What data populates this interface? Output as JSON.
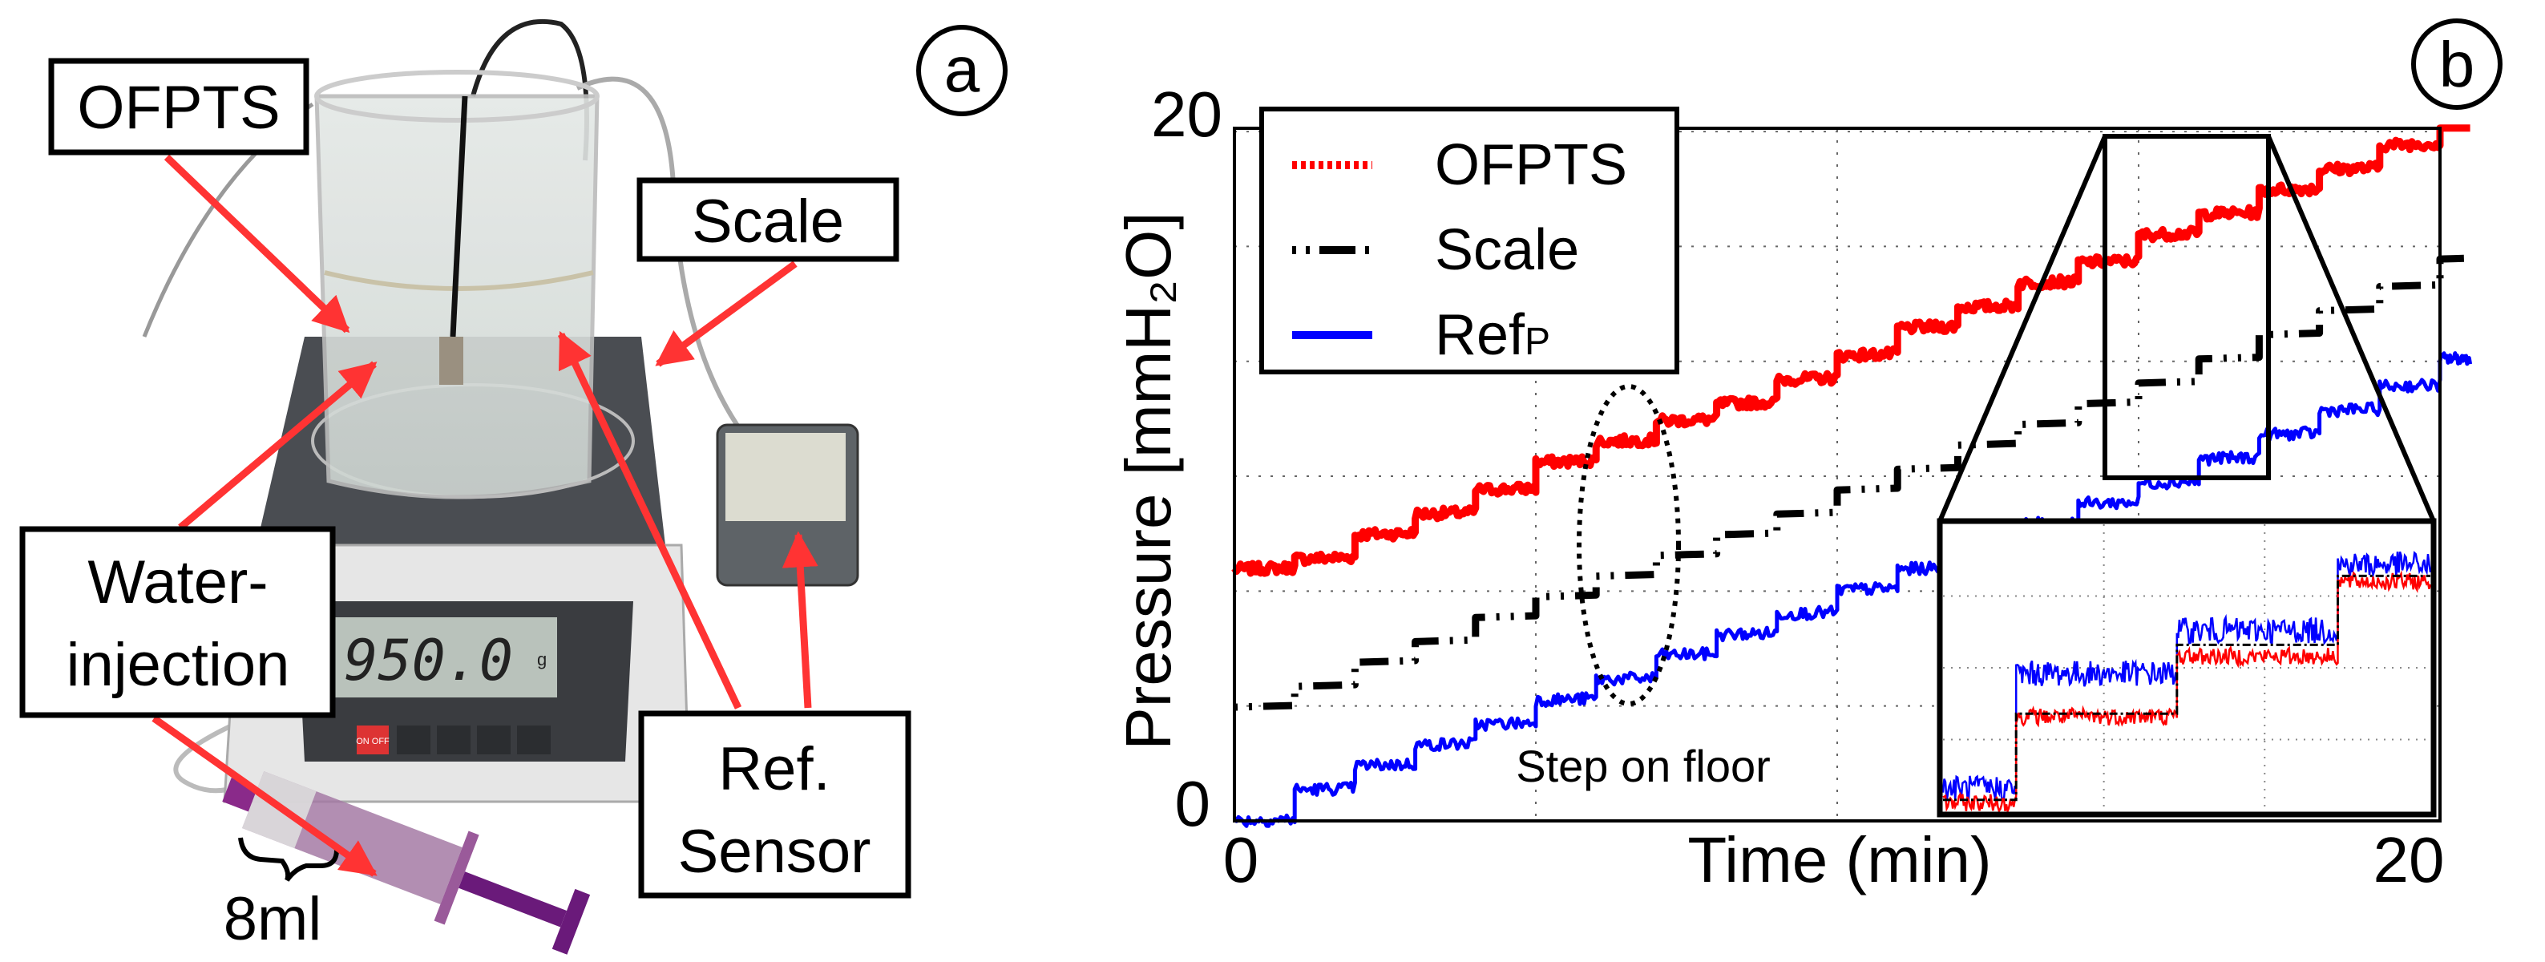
{
  "panel_a": {
    "panel_label": "a",
    "labels": {
      "ofpts": "OFPTS",
      "scale": "Scale",
      "water_line1": "Water-",
      "water_line2": "injection",
      "ref_line1": "Ref.",
      "ref_line2": "Sensor",
      "volume": "8ml"
    },
    "scale_display": "950.0",
    "scale_unit": "g",
    "scale_button": "ON OFF",
    "arrow_color": "#ff3333"
  },
  "chart_data": {
    "type": "line",
    "panel_label": "b",
    "title": "",
    "xlabel": "Time (min)",
    "ylabel": "Pressure [mmH₂O]",
    "xlim": [
      0,
      20
    ],
    "ylim": [
      0,
      20
    ],
    "xticks": [
      0,
      20
    ],
    "yticks": [
      0,
      20
    ],
    "grid": true,
    "grid_x_step": 5,
    "grid_y_step": 3.333,
    "legend_position": "top-left",
    "x": [
      0,
      1,
      2,
      3,
      4,
      5,
      6,
      7,
      8,
      9,
      10,
      11,
      12,
      13,
      14,
      15,
      16,
      17,
      18,
      19,
      20,
      20.5
    ],
    "series": [
      {
        "name": "OFPTS",
        "legend_main": "OFPTS",
        "legend_sub": "",
        "color": "#ff0000",
        "style": "dotted",
        "values": [
          7.3,
          7.6,
          8.3,
          8.9,
          9.6,
          10.4,
          11.0,
          11.6,
          12.1,
          12.8,
          13.5,
          14.3,
          14.9,
          15.6,
          16.2,
          17.0,
          17.6,
          18.3,
          18.9,
          19.6,
          20.3,
          20.3
        ]
      },
      {
        "name": "Scale",
        "legend_main": "Scale",
        "legend_sub": "",
        "color": "#000000",
        "style": "dashdot",
        "values": [
          3.3,
          3.9,
          4.6,
          5.2,
          5.9,
          6.5,
          7.1,
          7.7,
          8.3,
          8.9,
          9.6,
          10.2,
          10.9,
          11.5,
          12.1,
          12.7,
          13.4,
          14.1,
          14.8,
          15.5,
          16.3,
          16.3
        ]
      },
      {
        "name": "RefP",
        "legend_main": "Ref",
        "legend_sub": "P",
        "color": "#0000ff",
        "style": "solid",
        "values": [
          0.0,
          0.9,
          1.6,
          2.2,
          2.8,
          3.5,
          4.1,
          4.8,
          5.4,
          6.0,
          6.7,
          7.3,
          8.0,
          8.6,
          9.2,
          9.8,
          10.5,
          11.2,
          11.9,
          12.6,
          13.4,
          13.4
        ]
      }
    ],
    "annotation": "Step on floor",
    "zoom_window": {
      "xrange": [
        14.4,
        17.1
      ],
      "yrange": [
        10.0,
        19.9
      ]
    },
    "inset": {
      "x": [
        0,
        15,
        48,
        81,
        100
      ],
      "ylim": [
        0,
        10
      ],
      "series": [
        {
          "name": "RefP",
          "color": "#0000ff",
          "levels": [
            0.8,
            4.8,
            6.3,
            8.6
          ]
        },
        {
          "name": "OFPTS",
          "color": "#ff0000",
          "levels": [
            0.3,
            3.3,
            5.4,
            8.0
          ]
        },
        {
          "name": "Scale",
          "color": "#000000",
          "levels": [
            0.4,
            3.4,
            5.8,
            8.2
          ]
        }
      ]
    }
  }
}
